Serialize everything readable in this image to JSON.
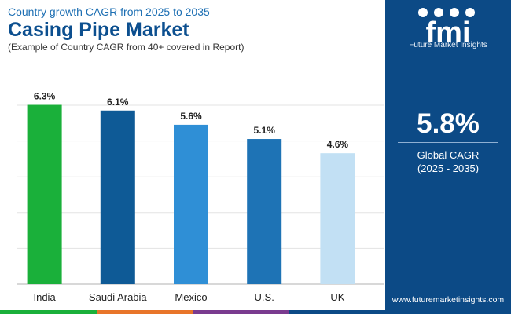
{
  "header": {
    "subtitle": "Country growth CAGR from 2025 to 2035",
    "title": "Casing Pipe Market",
    "note": "(Example of Country CAGR from 40+ covered in Report)"
  },
  "sidebar": {
    "logo_letters": "fmi",
    "logo_text": "Future Market Insights",
    "global_value": "5.8%",
    "global_label": "Global CAGR",
    "global_period": "(2025 - 2035)",
    "website": "www.futuremarketinsights.com"
  },
  "colors": {
    "sidebar_bg": "#0c4a86",
    "title": "#0c4f8f",
    "bars": [
      "#1ab03a",
      "#0e5a96",
      "#2f8fd6",
      "#1e73b5",
      "#c2e0f4"
    ],
    "strip": [
      "#1ab03a",
      "#e8752a",
      "#7a3b8f",
      "#0c4a86"
    ]
  },
  "chart_data": {
    "type": "bar",
    "categories": [
      "India",
      "Saudi Arabia",
      "Mexico",
      "U.S.",
      "UK"
    ],
    "values": [
      6.3,
      6.1,
      5.6,
      5.1,
      4.6
    ],
    "data_labels": [
      "6.3%",
      "6.1%",
      "5.6%",
      "5.1%",
      "4.6%"
    ],
    "title": "",
    "xlabel": "",
    "ylabel": "",
    "ylim": [
      0,
      7.5
    ],
    "grid": true,
    "legend": "none"
  }
}
